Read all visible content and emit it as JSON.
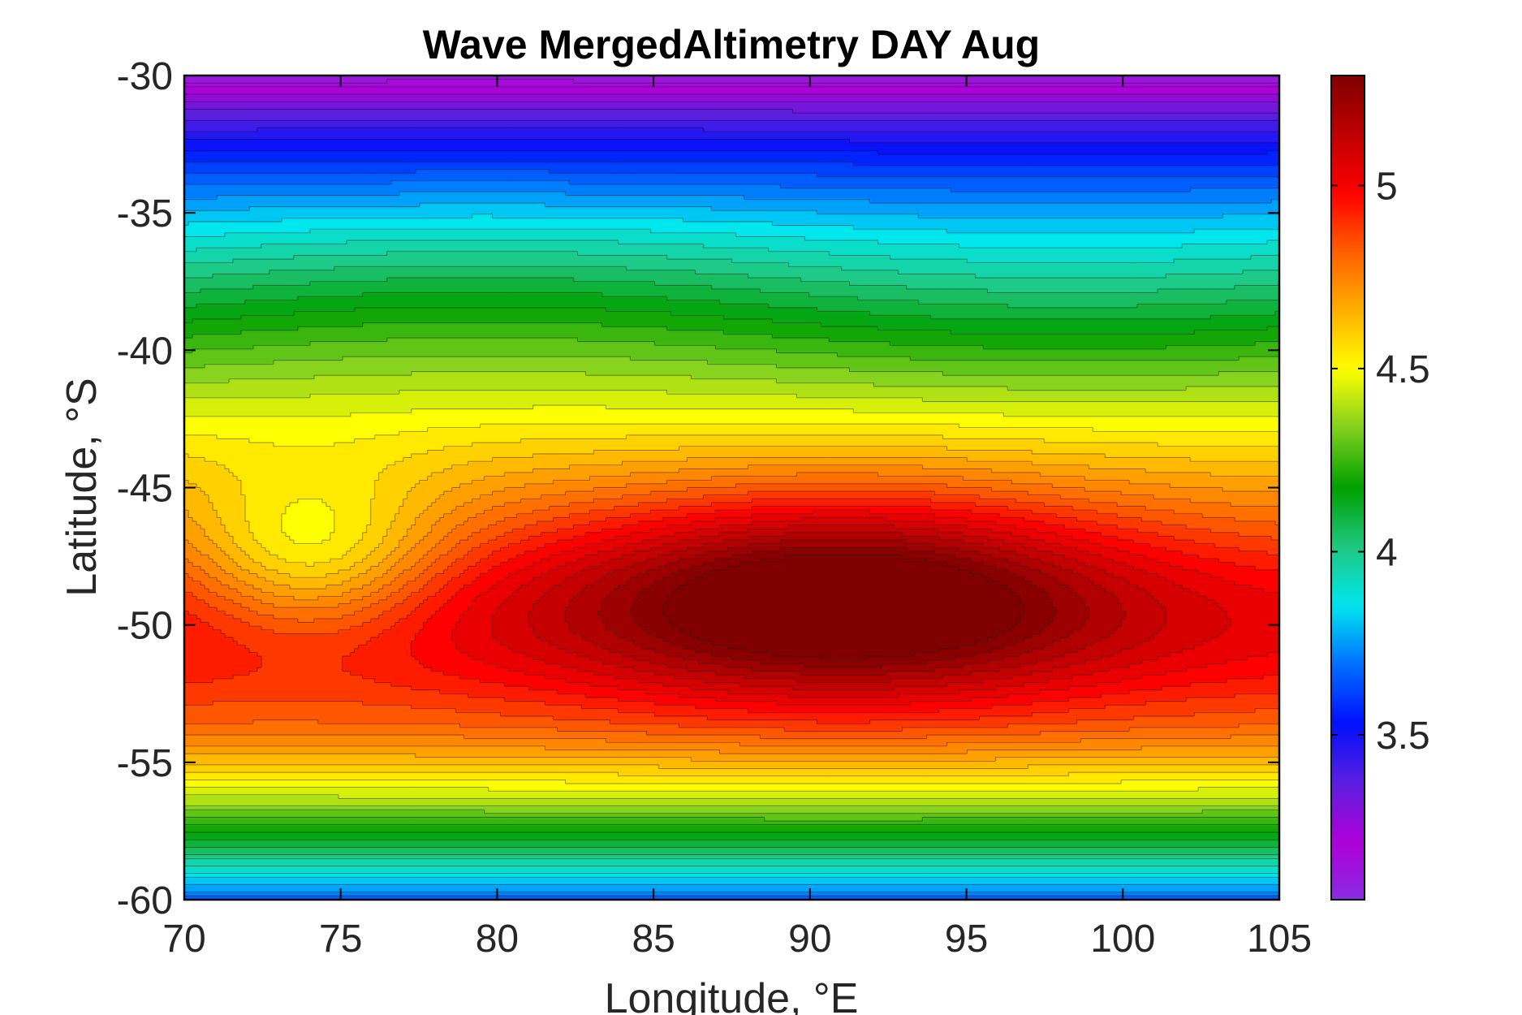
{
  "chart_data": {
    "type": "contour",
    "title": "Wave MergedAltimetry DAY Aug",
    "xlabel": "Longitude, °E",
    "ylabel": "Latitude, °S",
    "xlim": [
      70,
      105
    ],
    "ylim": [
      -60,
      -30
    ],
    "xticks": [
      "70",
      "75",
      "80",
      "85",
      "90",
      "95",
      "100",
      "105"
    ],
    "yticks": [
      "-30",
      "-35",
      "-40",
      "-45",
      "-50",
      "-55",
      "-60"
    ],
    "colorbar": {
      "range": [
        3.05,
        5.3
      ],
      "ticks": [
        "3.5",
        "4",
        "4.5",
        "5"
      ],
      "colormap": [
        "#8a2be2",
        "#b000d8",
        "#5a20e0",
        "#0010ff",
        "#0070ff",
        "#00e8f0",
        "#20c880",
        "#00a000",
        "#80d020",
        "#ffff00",
        "#ffb000",
        "#ff6000",
        "#ff0000",
        "#c00000",
        "#800000"
      ]
    },
    "grid": false,
    "colorbar_position": "right",
    "field_description": "Wave height field: minimum ~3.1 near -30°S rising southward; maximum ~5.3 centered near 91°E, -49°S; decreasing to ~3.6 near -60°S",
    "features": {
      "max_center": {
        "lon": 91,
        "lat": -48.8,
        "value": 5.3
      },
      "north_min": {
        "lat": -30,
        "value": 3.1
      },
      "south_min": {
        "lat": -60,
        "value": 3.65
      }
    }
  }
}
